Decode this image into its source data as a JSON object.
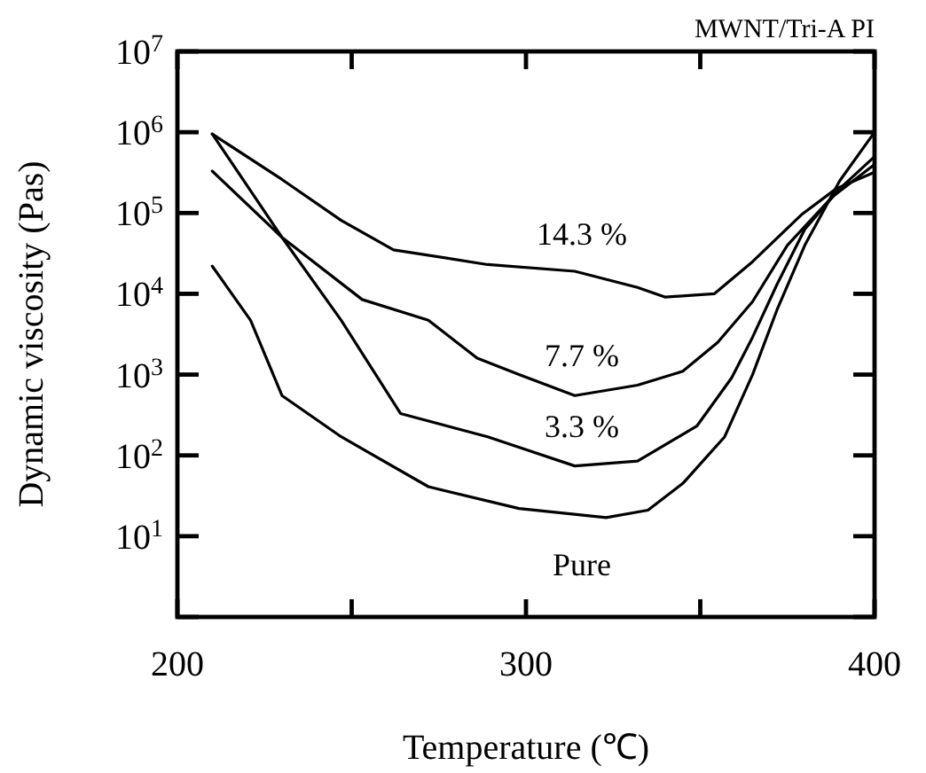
{
  "chart_data": {
    "type": "line",
    "title": "MWNT/Tri-A PI",
    "xlabel": "Temperature (℃)",
    "ylabel": "Dynamic viscosity (Pas)",
    "log": "y",
    "grid": false,
    "marker": "none",
    "line_style": "solid",
    "xlim": [
      200,
      400
    ],
    "xticks": [
      200,
      {
        "value": 250,
        "label": null
      },
      300,
      {
        "value": 350,
        "label": null
      },
      400
    ],
    "ylim": [
      1,
      10000000
    ],
    "yticks": [
      {
        "value": 1,
        "label": null
      },
      {
        "value": 10,
        "label": "10$^{1}$"
      },
      {
        "value": 100,
        "label": "10$^{2}$"
      },
      {
        "value": 1000,
        "label": "10$^{3}$"
      },
      {
        "value": 10000,
        "label": "10$^{4}$"
      },
      {
        "value": 100000,
        "label": "10$^{5}$"
      },
      {
        "value": 1000000,
        "label": "10$^{6}$"
      },
      {
        "value": 10000000,
        "label": "10$^{7}$"
      }
    ],
    "series": [
      {
        "name": "14.3 %",
        "color": "#000000",
        "x": [
          210,
          230,
          247,
          262,
          289,
          314,
          332,
          340,
          354,
          365,
          379,
          389,
          400
        ],
        "values": [
          950000,
          260000,
          81000,
          35000,
          23000,
          19000,
          12000,
          9100,
          10000,
          25000,
          95000,
          200000,
          320000
        ]
      },
      {
        "name": "7.7 %",
        "color": "#000000",
        "x": [
          210,
          230,
          253,
          272,
          286,
          298,
          314,
          332,
          345,
          355,
          365,
          375,
          388,
          400
        ],
        "values": [
          330000,
          50000,
          8500,
          4700,
          1600,
          1000,
          550,
          740,
          1100,
          2500,
          8000,
          40000,
          160000,
          400000
        ]
      },
      {
        "name": "3.3 %",
        "color": "#000000",
        "x": [
          210,
          230,
          247,
          264,
          289,
          314,
          332,
          349,
          359,
          365,
          372,
          380,
          390,
          400
        ],
        "values": [
          950000,
          50000,
          4700,
          330,
          170,
          74,
          85,
          230,
          910,
          2900,
          13000,
          63000,
          200000,
          500000
        ]
      },
      {
        "name": "Pure",
        "color": "#000000",
        "x": [
          210,
          221,
          230,
          247,
          272,
          298,
          323,
          335,
          345,
          357,
          365,
          372,
          380,
          390,
          400
        ],
        "values": [
          22000,
          4700,
          550,
          170,
          41,
          22,
          17,
          21,
          45,
          170,
          1000,
          6300,
          40000,
          250000,
          1000000
        ]
      }
    ]
  }
}
